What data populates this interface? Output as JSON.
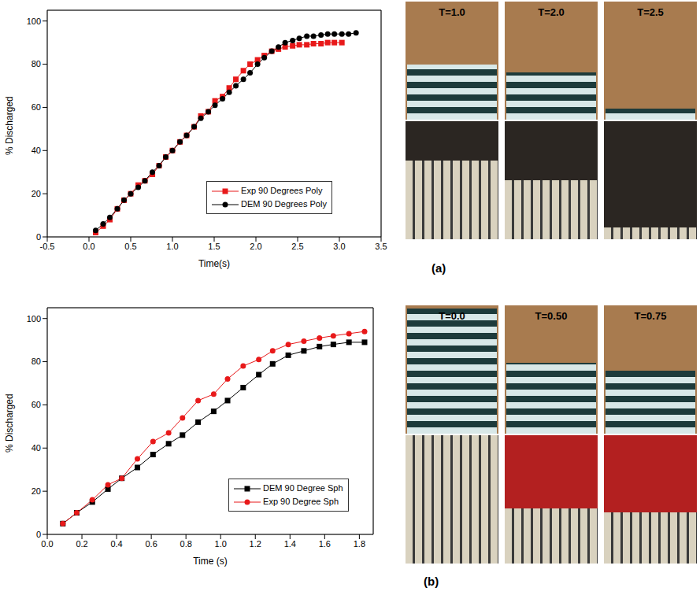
{
  "chart_data": [
    {
      "type": "line",
      "panel": "(a)",
      "xlabel": "Time(s)",
      "ylabel": "% Discharged",
      "xlim": [
        -0.5,
        3.5
      ],
      "xticks": [
        -0.5,
        {
          "value": 0,
          "label": "0.0"
        },
        0.5,
        {
          "value": 1,
          "label": "1.0"
        },
        1.5,
        {
          "value": 2,
          "label": "2.0"
        },
        2.5,
        {
          "value": 3,
          "label": "3.0"
        },
        3.5
      ],
      "ylim": [
        0,
        105
      ],
      "yticks": [
        0,
        20,
        40,
        60,
        80,
        100
      ],
      "grid": true,
      "legend": "lower right",
      "annotations": [
        "T=1.0",
        "T=2.0",
        "T=2.5"
      ],
      "series": [
        {
          "name": "Exp 90 Degrees Poly",
          "color": "#e8191a",
          "marker": "square",
          "x": [
            0.08,
            0.17,
            0.25,
            0.34,
            0.42,
            0.5,
            0.59,
            0.67,
            0.76,
            0.84,
            0.92,
            1.0,
            1.09,
            1.17,
            1.26,
            1.34,
            1.43,
            1.51,
            1.6,
            1.68,
            1.76,
            1.85,
            1.93,
            2.02,
            2.1,
            2.19,
            2.27,
            2.35,
            2.44,
            2.52,
            2.61,
            2.69,
            2.78,
            2.86,
            2.94,
            3.03
          ],
          "values": [
            2,
            5,
            8,
            13,
            17,
            20,
            24,
            26,
            29,
            33,
            37,
            40,
            44,
            47,
            51,
            56,
            58,
            63,
            65,
            69,
            73,
            77,
            80,
            82,
            84,
            86,
            87,
            88,
            88.5,
            89,
            89,
            89.5,
            89.5,
            90,
            90,
            90
          ]
        },
        {
          "name": "DEM 90 Degrees Poly",
          "color": "#000000",
          "marker": "circle",
          "x": [
            0.08,
            0.17,
            0.25,
            0.34,
            0.42,
            0.5,
            0.59,
            0.67,
            0.76,
            0.84,
            0.92,
            1.0,
            1.09,
            1.17,
            1.26,
            1.34,
            1.43,
            1.51,
            1.6,
            1.68,
            1.76,
            1.85,
            1.93,
            2.02,
            2.1,
            2.19,
            2.27,
            2.35,
            2.44,
            2.52,
            2.61,
            2.69,
            2.78,
            2.86,
            2.94,
            3.03,
            3.11,
            3.2
          ],
          "values": [
            3,
            6,
            9,
            13,
            17,
            20,
            23,
            26,
            30,
            33,
            37,
            40,
            44,
            47,
            51,
            55,
            58,
            61,
            64,
            67,
            70,
            73,
            76,
            80,
            83,
            86,
            88,
            90,
            91,
            92,
            93,
            93,
            93.5,
            94,
            94,
            94,
            94,
            94.5
          ]
        }
      ]
    },
    {
      "type": "line",
      "panel": "(b)",
      "xlabel": "Time (s)",
      "ylabel": "% Discharged",
      "xlim": [
        0,
        1.88
      ],
      "xticks": [
        {
          "value": 0,
          "label": "0.0"
        },
        0.2,
        0.4,
        0.6,
        0.8,
        {
          "value": 1,
          "label": "1.0"
        },
        1.2,
        1.4,
        1.6,
        1.8
      ],
      "ylim": [
        0,
        105
      ],
      "yticks": [
        0,
        20,
        40,
        60,
        80,
        100
      ],
      "grid": true,
      "legend": "lower right",
      "annotations": [
        "T=0.0",
        "T=0.50",
        "T=0.75"
      ],
      "series": [
        {
          "name": "DEM 90 Degree Sph",
          "color": "#000000",
          "marker": "square",
          "x": [
            0.09,
            0.17,
            0.26,
            0.35,
            0.43,
            0.52,
            0.61,
            0.7,
            0.78,
            0.87,
            0.96,
            1.04,
            1.13,
            1.22,
            1.3,
            1.39,
            1.48,
            1.57,
            1.65,
            1.74,
            1.83
          ],
          "values": [
            5,
            10,
            15,
            21,
            26,
            31,
            37,
            42,
            46,
            52,
            57,
            62,
            68,
            74,
            79,
            83,
            85,
            87,
            88,
            89,
            89
          ]
        },
        {
          "name": "Exp 90 Degree Sph",
          "color": "#e8191a",
          "marker": "circle",
          "x": [
            0.09,
            0.17,
            0.26,
            0.35,
            0.43,
            0.52,
            0.61,
            0.7,
            0.78,
            0.87,
            0.96,
            1.04,
            1.13,
            1.22,
            1.3,
            1.39,
            1.48,
            1.57,
            1.65,
            1.74,
            1.83
          ],
          "values": [
            5,
            10,
            16,
            23,
            26,
            35,
            43,
            47,
            54,
            62,
            65,
            72,
            78,
            81,
            85,
            88,
            89.5,
            91,
            92,
            93,
            94
          ]
        }
      ]
    }
  ]
}
